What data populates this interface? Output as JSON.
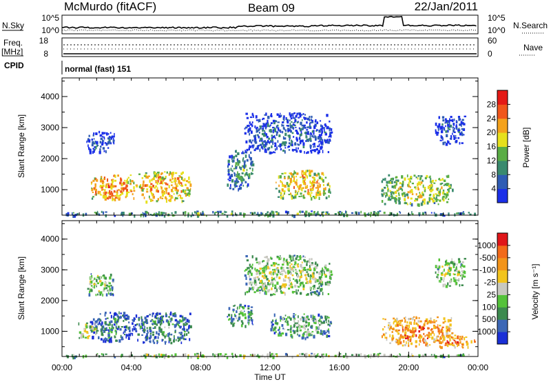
{
  "header": {
    "station": "McMurdo (fitACF)",
    "beam": "Beam 09",
    "date": "22/Jan/2011"
  },
  "summary_panel": {
    "n_sky_label": "N.Sky",
    "n_search_label": "N.Search",
    "n_ticks_left": [
      "10^5",
      "10^0"
    ],
    "n_ticks_right": [
      "10^5",
      "10^0"
    ],
    "freq_label": "Freq.",
    "freq_unit": "[MHz]",
    "freq_ticks": [
      "18",
      "8"
    ],
    "nave_label": "Nave",
    "nave_ticks": [
      "60",
      "0"
    ],
    "cpid_label": "CPID",
    "cpid_text": "normal (fast) 151"
  },
  "chart_data": [
    {
      "type": "heatmap",
      "panel": "power",
      "ylabel": "Slant Range [km]",
      "yticks": [
        "1000",
        "2000",
        "3000",
        "4000"
      ],
      "ylim": [
        180,
        4600
      ],
      "xlim_hours": [
        0,
        24
      ],
      "colorbar": {
        "title": "Power [dB]",
        "ticks": [
          "4",
          "8",
          "12",
          "16",
          "20",
          "24",
          "28"
        ],
        "colors": [
          "#1b2fe8",
          "#2f5cb4",
          "#3a8a6e",
          "#5aad45",
          "#e6e01c",
          "#f4a21c",
          "#f0561b",
          "#e41a16"
        ]
      },
      "echo_regions": [
        {
          "t0": 1.6,
          "t1": 4.2,
          "r0": 700,
          "r1": 1500,
          "level": 0.75
        },
        {
          "t0": 4.2,
          "t1": 7.4,
          "r0": 650,
          "r1": 1600,
          "level": 0.7
        },
        {
          "t0": 12.3,
          "t1": 15.5,
          "r0": 750,
          "r1": 1650,
          "level": 0.65
        },
        {
          "t0": 18.4,
          "t1": 22.5,
          "r0": 550,
          "r1": 1500,
          "level": 0.55
        },
        {
          "t0": 9.5,
          "t1": 11.0,
          "r0": 1000,
          "r1": 2300,
          "level": 0.35
        },
        {
          "t0": 1.4,
          "t1": 3.0,
          "r0": 2200,
          "r1": 2900,
          "level": 0.2
        },
        {
          "t0": 10.5,
          "t1": 15.5,
          "r0": 2200,
          "r1": 3500,
          "level": 0.2
        },
        {
          "t0": 21.5,
          "t1": 23.2,
          "r0": 2500,
          "r1": 3400,
          "level": 0.2
        },
        {
          "t0": 0.2,
          "t1": 24.0,
          "r0": 180,
          "r1": 330,
          "level": 0.4
        }
      ]
    },
    {
      "type": "heatmap",
      "panel": "velocity",
      "ylabel": "Slant Range [km]",
      "yticks": [
        "1000",
        "2000",
        "3000",
        "4000"
      ],
      "ylim": [
        180,
        4600
      ],
      "xlim_hours": [
        0,
        24
      ],
      "colorbar": {
        "title": "Velocity [m s⁻¹]",
        "ticks": [
          "1000",
          "500",
          "100",
          "25",
          "-25",
          "-100",
          "-500",
          "-1000"
        ],
        "colors": [
          "#1a2fd6",
          "#3c67b6",
          "#3c8a4e",
          "#54c23a",
          "#c8c8c0",
          "#f2c41e",
          "#f39419",
          "#f26a1a",
          "#e0161a"
        ]
      },
      "echo_regions": [
        {
          "t0": 1.6,
          "t1": 4.2,
          "r0": 700,
          "r1": 1650,
          "vel": 0.25
        },
        {
          "t0": 4.2,
          "t1": 7.4,
          "r0": 650,
          "r1": 1650,
          "vel": 0.3
        },
        {
          "t0": 0.9,
          "t1": 2.0,
          "r0": 800,
          "r1": 1300,
          "vel": 0.55
        },
        {
          "t0": 9.5,
          "t1": 11.0,
          "r0": 1200,
          "r1": 1900,
          "vel": 0.35
        },
        {
          "t0": 12.0,
          "t1": 15.5,
          "r0": 800,
          "r1": 1600,
          "vel": 0.4
        },
        {
          "t0": 18.4,
          "t1": 22.5,
          "r0": 550,
          "r1": 1500,
          "vel": 0.78
        },
        {
          "t0": 21.5,
          "t1": 23.8,
          "r0": 500,
          "r1": 900,
          "vel": 0.8
        },
        {
          "t0": 1.4,
          "t1": 3.0,
          "r0": 2200,
          "r1": 2900,
          "vel": 0.5
        },
        {
          "t0": 10.5,
          "t1": 15.5,
          "r0": 2200,
          "r1": 3500,
          "vel": 0.5
        },
        {
          "t0": 21.5,
          "t1": 23.2,
          "r0": 2500,
          "r1": 3400,
          "vel": 0.5
        },
        {
          "t0": 0.2,
          "t1": 24.0,
          "r0": 180,
          "r1": 300,
          "vel": 0.5
        }
      ]
    }
  ],
  "time_axis": {
    "ticks": [
      "00:00",
      "04:00",
      "08:00",
      "12:00",
      "16:00",
      "20:00",
      "00:00"
    ],
    "label": "Time UT"
  }
}
